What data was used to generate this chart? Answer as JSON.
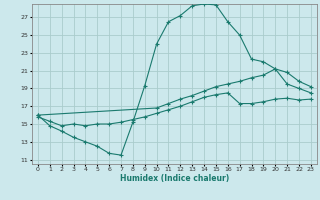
{
  "xlabel": "Humidex (Indice chaleur)",
  "bg_color": "#cce8ec",
  "grid_color": "#aacccc",
  "line_color": "#1a7a6e",
  "xlim": [
    -0.5,
    23.5
  ],
  "ylim": [
    10.5,
    28.5
  ],
  "yticks": [
    11,
    13,
    15,
    17,
    19,
    21,
    23,
    25,
    27
  ],
  "xticks": [
    0,
    1,
    2,
    3,
    4,
    5,
    6,
    7,
    8,
    9,
    10,
    11,
    12,
    13,
    14,
    15,
    16,
    17,
    18,
    19,
    20,
    21,
    22,
    23
  ],
  "curve1_x": [
    0,
    1,
    2,
    3,
    4,
    5,
    6,
    7,
    8,
    9,
    10,
    11,
    12,
    13,
    14,
    15,
    16,
    17,
    18,
    19,
    20,
    21,
    22,
    23
  ],
  "curve1_y": [
    16.0,
    14.8,
    14.2,
    13.5,
    13.0,
    12.5,
    11.7,
    11.5,
    15.2,
    19.3,
    24.0,
    26.5,
    27.2,
    28.3,
    28.5,
    28.4,
    26.5,
    25.0,
    22.3,
    22.0,
    21.2,
    19.5,
    19.0,
    18.5
  ],
  "curve2_x": [
    0,
    10,
    11,
    12,
    13,
    14,
    15,
    16,
    17,
    18,
    19,
    20,
    21,
    22,
    23
  ],
  "curve2_y": [
    16.0,
    16.8,
    17.3,
    17.8,
    18.2,
    18.7,
    19.2,
    19.5,
    19.8,
    20.2,
    20.5,
    21.2,
    20.8,
    19.8,
    19.2
  ],
  "curve3_x": [
    0,
    1,
    2,
    3,
    4,
    5,
    6,
    7,
    8,
    9,
    10,
    11,
    12,
    13,
    14,
    15,
    16,
    17,
    18,
    19,
    20,
    21,
    22,
    23
  ],
  "curve3_y": [
    15.8,
    15.3,
    14.8,
    15.0,
    14.8,
    15.0,
    15.0,
    15.2,
    15.5,
    15.8,
    16.2,
    16.6,
    17.0,
    17.5,
    18.0,
    18.3,
    18.5,
    17.3,
    17.3,
    17.5,
    17.8,
    17.9,
    17.7,
    17.8
  ]
}
